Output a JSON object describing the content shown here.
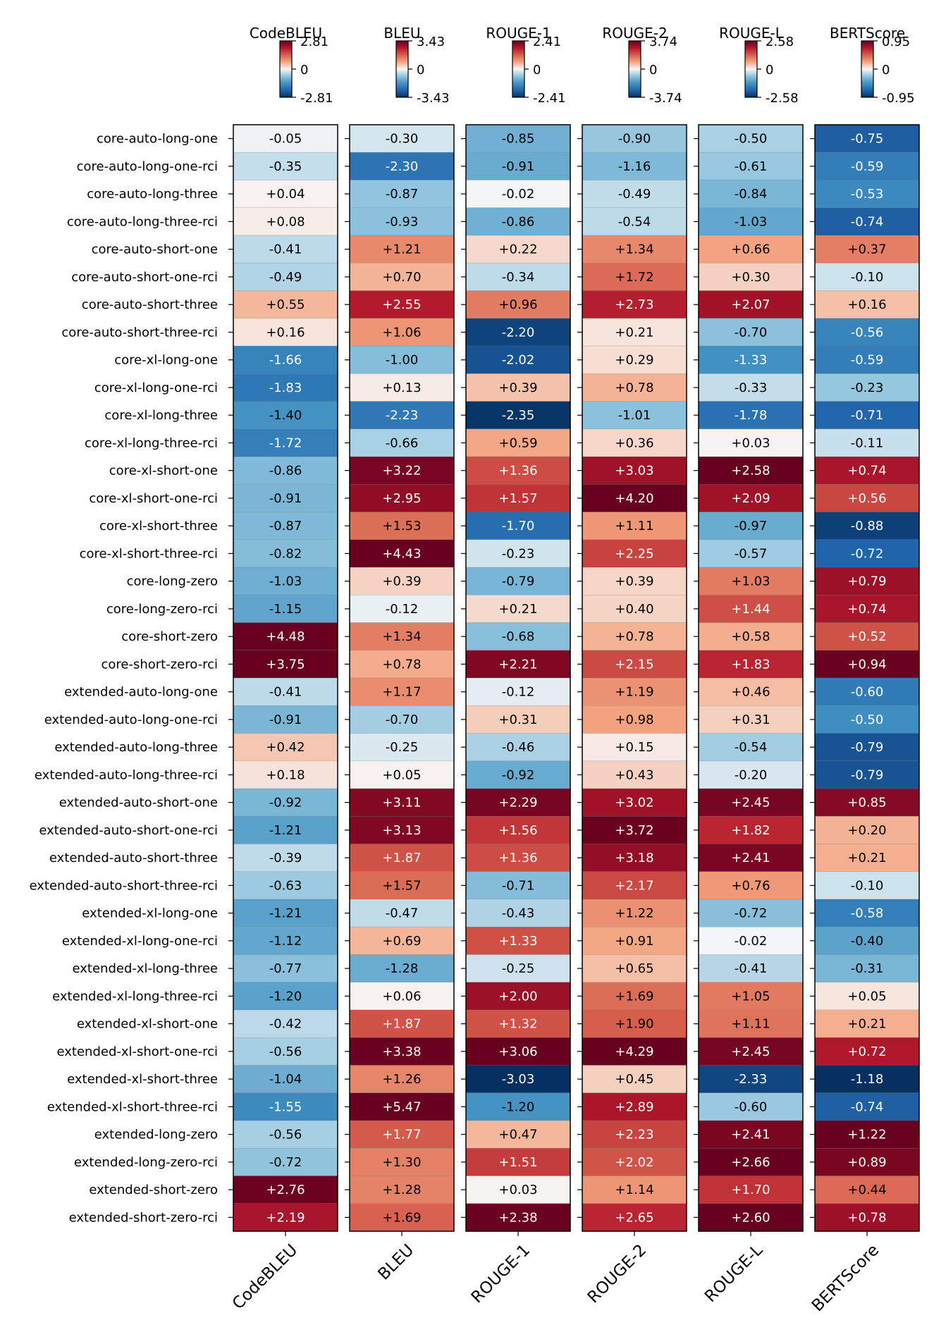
{
  "chart_data": {
    "type": "heatmap",
    "colormap": "RdBu_r",
    "rows": [
      "core-auto-long-one",
      "core-auto-long-one-rci",
      "core-auto-long-three",
      "core-auto-long-three-rci",
      "core-auto-short-one",
      "core-auto-short-one-rci",
      "core-auto-short-three",
      "core-auto-short-three-rci",
      "core-xl-long-one",
      "core-xl-long-one-rci",
      "core-xl-long-three",
      "core-xl-long-three-rci",
      "core-xl-short-one",
      "core-xl-short-one-rci",
      "core-xl-short-three",
      "core-xl-short-three-rci",
      "core-long-zero",
      "core-long-zero-rci",
      "core-short-zero",
      "core-short-zero-rci",
      "extended-auto-long-one",
      "extended-auto-long-one-rci",
      "extended-auto-long-three",
      "extended-auto-long-three-rci",
      "extended-auto-short-one",
      "extended-auto-short-one-rci",
      "extended-auto-short-three",
      "extended-auto-short-three-rci",
      "extended-xl-long-one",
      "extended-xl-long-one-rci",
      "extended-xl-long-three",
      "extended-xl-long-three-rci",
      "extended-xl-short-one",
      "extended-xl-short-one-rci",
      "extended-xl-short-three",
      "extended-xl-short-three-rci",
      "extended-long-zero",
      "extended-long-zero-rci",
      "extended-short-zero",
      "extended-short-zero-rci"
    ],
    "series": [
      {
        "name": "CodeBLEU",
        "colorbar": {
          "min": "-2.81",
          "mid": "0",
          "max": "2.81"
        },
        "vmax": 2.81,
        "values": [
          -0.05,
          -0.35,
          0.04,
          0.08,
          -0.41,
          -0.49,
          0.55,
          0.16,
          -1.66,
          -1.83,
          -1.4,
          -1.72,
          -0.86,
          -0.91,
          -0.87,
          -0.82,
          -1.03,
          -1.15,
          4.48,
          3.75,
          -0.41,
          -0.91,
          0.42,
          0.18,
          -0.92,
          -1.21,
          -0.39,
          -0.63,
          -1.21,
          -1.12,
          -0.77,
          -1.2,
          -0.42,
          -0.56,
          -1.04,
          -1.55,
          -0.56,
          -0.72,
          2.76,
          2.19
        ],
        "labels": [
          "-0.05",
          "-0.35",
          "+0.04",
          "+0.08",
          "-0.41",
          "-0.49",
          "+0.55",
          "+0.16",
          "-1.66",
          "-1.83",
          "-1.40",
          "-1.72",
          "-0.86",
          "-0.91",
          "-0.87",
          "-0.82",
          "-1.03",
          "-1.15",
          "+4.48",
          "+3.75",
          "-0.41",
          "-0.91",
          "+0.42",
          "+0.18",
          "-0.92",
          "-1.21",
          "-0.39",
          "-0.63",
          "-1.21",
          "-1.12",
          "-0.77",
          "-1.20",
          "-0.42",
          "-0.56",
          "-1.04",
          "-1.55",
          "-0.56",
          "-0.72",
          "+2.76",
          "+2.19"
        ]
      },
      {
        "name": "BLEU",
        "colorbar": {
          "min": "-3.43",
          "mid": "0",
          "max": "3.43"
        },
        "vmax": 3.43,
        "values": [
          -0.3,
          -2.3,
          -0.87,
          -0.93,
          1.21,
          0.7,
          2.55,
          1.06,
          -1.0,
          0.13,
          -2.23,
          -0.66,
          3.22,
          2.95,
          1.53,
          4.43,
          0.39,
          -0.12,
          1.34,
          0.78,
          1.17,
          -0.7,
          -0.25,
          0.05,
          3.11,
          3.13,
          1.87,
          1.57,
          -0.47,
          0.69,
          -1.28,
          0.06,
          1.87,
          3.38,
          1.26,
          5.47,
          1.77,
          1.3,
          1.28,
          1.69
        ],
        "labels": [
          "-0.30",
          "-2.30",
          "-0.87",
          "-0.93",
          "+1.21",
          "+0.70",
          "+2.55",
          "+1.06",
          "-1.00",
          "+0.13",
          "-2.23",
          "-0.66",
          "+3.22",
          "+2.95",
          "+1.53",
          "+4.43",
          "+0.39",
          "-0.12",
          "+1.34",
          "+0.78",
          "+1.17",
          "-0.70",
          "-0.25",
          "+0.05",
          "+3.11",
          "+3.13",
          "+1.87",
          "+1.57",
          "-0.47",
          "+0.69",
          "-1.28",
          "+0.06",
          "+1.87",
          "+3.38",
          "+1.26",
          "+5.47",
          "+1.77",
          "+1.30",
          "+1.28",
          "+1.69"
        ]
      },
      {
        "name": "ROUGE-1",
        "colorbar": {
          "min": "-2.41",
          "mid": "0",
          "max": "2.41"
        },
        "vmax": 2.41,
        "values": [
          -0.85,
          -0.91,
          -0.02,
          -0.86,
          0.22,
          -0.34,
          0.96,
          -2.2,
          -2.02,
          0.39,
          -2.35,
          0.59,
          1.36,
          1.57,
          -1.7,
          -0.23,
          -0.79,
          0.21,
          -0.68,
          2.21,
          -0.12,
          0.31,
          -0.46,
          -0.92,
          2.29,
          1.56,
          1.36,
          -0.71,
          -0.43,
          1.33,
          -0.25,
          2.0,
          1.32,
          3.06,
          -3.03,
          -1.2,
          0.47,
          1.51,
          0.03,
          2.38
        ],
        "labels": [
          "-0.85",
          "-0.91",
          "-0.02",
          "-0.86",
          "+0.22",
          "-0.34",
          "+0.96",
          "-2.20",
          "-2.02",
          "+0.39",
          "-2.35",
          "+0.59",
          "+1.36",
          "+1.57",
          "-1.70",
          "-0.23",
          "-0.79",
          "+0.21",
          "-0.68",
          "+2.21",
          "-0.12",
          "+0.31",
          "-0.46",
          "-0.92",
          "+2.29",
          "+1.56",
          "+1.36",
          "-0.71",
          "-0.43",
          "+1.33",
          "-0.25",
          "+2.00",
          "+1.32",
          "+3.06",
          "-3.03",
          "-1.20",
          "+0.47",
          "+1.51",
          "+0.03",
          "+2.38"
        ]
      },
      {
        "name": "ROUGE-2",
        "colorbar": {
          "min": "-3.74",
          "mid": "0",
          "max": "3.74"
        },
        "vmax": 3.74,
        "values": [
          -0.9,
          -1.16,
          -0.49,
          -0.54,
          1.34,
          1.72,
          2.73,
          0.21,
          0.29,
          0.78,
          -1.01,
          0.36,
          3.03,
          4.2,
          1.11,
          2.25,
          0.39,
          0.4,
          0.78,
          2.15,
          1.19,
          0.98,
          0.15,
          0.43,
          3.02,
          3.72,
          3.18,
          2.17,
          1.22,
          0.91,
          0.65,
          1.69,
          1.9,
          4.29,
          0.45,
          2.89,
          2.23,
          2.02,
          1.14,
          2.65
        ],
        "labels": [
          "-0.90",
          "-1.16",
          "-0.49",
          "-0.54",
          "+1.34",
          "+1.72",
          "+2.73",
          "+0.21",
          "+0.29",
          "+0.78",
          "-1.01",
          "+0.36",
          "+3.03",
          "+4.20",
          "+1.11",
          "+2.25",
          "+0.39",
          "+0.40",
          "+0.78",
          "+2.15",
          "+1.19",
          "+0.98",
          "+0.15",
          "+0.43",
          "+3.02",
          "+3.72",
          "+3.18",
          "+2.17",
          "+1.22",
          "+0.91",
          "+0.65",
          "+1.69",
          "+1.90",
          "+4.29",
          "+0.45",
          "+2.89",
          "+2.23",
          "+2.02",
          "+1.14",
          "+2.65"
        ]
      },
      {
        "name": "ROUGE-L",
        "colorbar": {
          "min": "-2.58",
          "mid": "0",
          "max": "2.58"
        },
        "vmax": 2.58,
        "values": [
          -0.5,
          -0.61,
          -0.84,
          -1.03,
          0.66,
          0.3,
          2.07,
          -0.7,
          -1.33,
          -0.33,
          -1.78,
          0.03,
          2.58,
          2.09,
          -0.97,
          -0.57,
          1.03,
          1.44,
          0.58,
          1.83,
          0.46,
          0.31,
          -0.54,
          -0.2,
          2.45,
          1.82,
          2.41,
          0.76,
          -0.72,
          -0.02,
          -0.41,
          1.05,
          1.11,
          2.45,
          -2.33,
          -0.6,
          2.41,
          2.66,
          1.7,
          2.6
        ],
        "labels": [
          "-0.50",
          "-0.61",
          "-0.84",
          "-1.03",
          "+0.66",
          "+0.30",
          "+2.07",
          "-0.70",
          "-1.33",
          "-0.33",
          "-1.78",
          "+0.03",
          "+2.58",
          "+2.09",
          "-0.97",
          "-0.57",
          "+1.03",
          "+1.44",
          "+0.58",
          "+1.83",
          "+0.46",
          "+0.31",
          "-0.54",
          "-0.20",
          "+2.45",
          "+1.82",
          "+2.41",
          "+0.76",
          "-0.72",
          "-0.02",
          "-0.41",
          "+1.05",
          "+1.11",
          "+2.45",
          "-2.33",
          "-0.60",
          "+2.41",
          "+2.66",
          "+1.70",
          "+2.60"
        ]
      },
      {
        "name": "BERTScore",
        "colorbar": {
          "min": "-0.95",
          "mid": "0",
          "max": "0.95"
        },
        "vmax": 0.95,
        "values": [
          -0.75,
          -0.59,
          -0.53,
          -0.74,
          0.37,
          -0.1,
          0.16,
          -0.56,
          -0.59,
          -0.23,
          -0.71,
          -0.11,
          0.74,
          0.56,
          -0.88,
          -0.72,
          0.79,
          0.74,
          0.52,
          0.94,
          -0.6,
          -0.5,
          -0.79,
          -0.79,
          0.85,
          0.2,
          0.21,
          -0.1,
          -0.58,
          -0.4,
          -0.31,
          0.05,
          0.21,
          0.72,
          -1.18,
          -0.74,
          1.22,
          0.89,
          0.44,
          0.78
        ],
        "labels": [
          "-0.75",
          "-0.59",
          "-0.53",
          "-0.74",
          "+0.37",
          "-0.10",
          "+0.16",
          "-0.56",
          "-0.59",
          "-0.23",
          "-0.71",
          "-0.11",
          "+0.74",
          "+0.56",
          "-0.88",
          "-0.72",
          "+0.79",
          "+0.74",
          "+0.52",
          "+0.94",
          "-0.60",
          "-0.50",
          "-0.79",
          "-0.79",
          "+0.85",
          "+0.20",
          "+0.21",
          "-0.10",
          "-0.58",
          "-0.40",
          "-0.31",
          "+0.05",
          "+0.21",
          "+0.72",
          "-1.18",
          "-0.74",
          "+1.22",
          "+0.89",
          "+0.44",
          "+0.78"
        ]
      }
    ]
  }
}
